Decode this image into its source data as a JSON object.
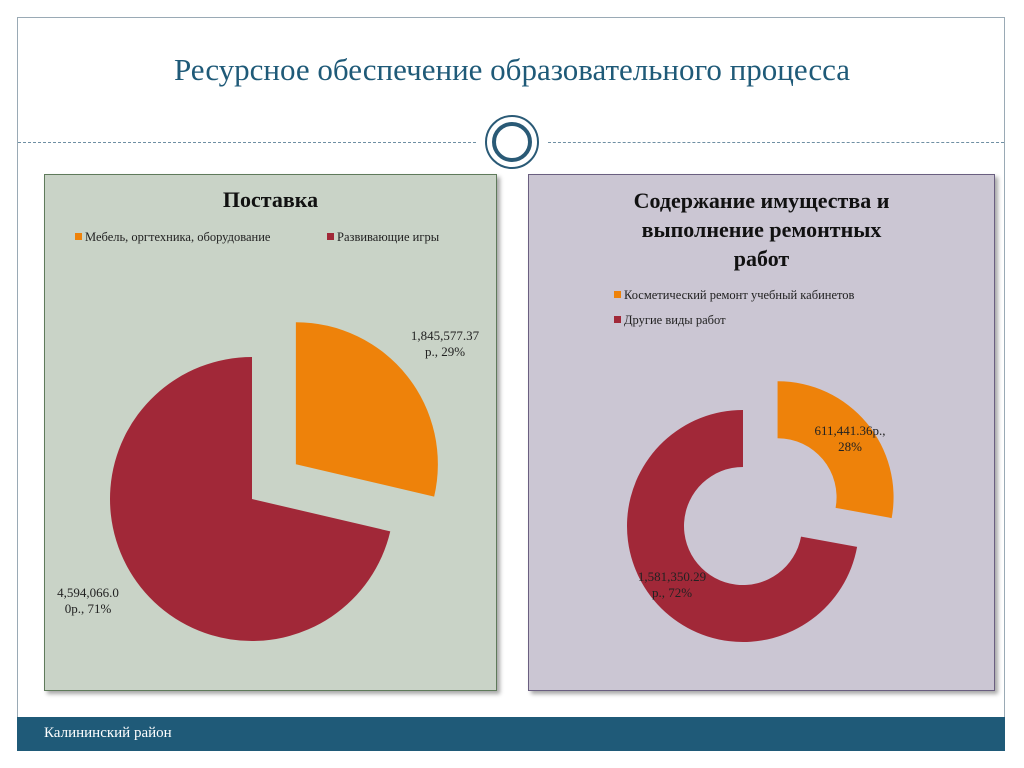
{
  "slide": {
    "title": "Ресурсное обеспечение образовательного процесса",
    "footer": "Калининский район"
  },
  "colors": {
    "orange": "#ee820a",
    "red": "#a12838",
    "title": "#1f5a78"
  },
  "chart_data": [
    {
      "type": "pie",
      "title": "Поставка",
      "legend": "top",
      "series": [
        {
          "name": "Мебель, оргтехника, оборудование",
          "value": 1845577.37,
          "percent": 29,
          "label": "1,845,577.37 р., 29%",
          "label_lines": [
            "1,845,577.37",
            "р., 29%"
          ],
          "color": "#ee820a"
        },
        {
          "name": "Развивающие игры",
          "value": 4594066.0,
          "percent": 71,
          "label": "4,594,066.00р., 71%",
          "label_lines": [
            "4,594,066.0",
            "0р., 71%"
          ],
          "color": "#a12838"
        }
      ]
    },
    {
      "type": "doughnut",
      "title": "Содержание имущества и выполнение ремонтных работ",
      "title_lines": [
        "Содержание имущества и",
        "выполнение ремонтных",
        "работ"
      ],
      "legend": "top",
      "series": [
        {
          "name": "Косметический ремонт учебный кабинетов",
          "value": 611441.36,
          "percent": 28,
          "label": "611,441.36р., 28%",
          "label_lines": [
            "611,441.36р.,",
            "28%"
          ],
          "color": "#ee820a"
        },
        {
          "name": "Другие виды работ",
          "value": 1581350.29,
          "percent": 72,
          "label": "1,581,350.29 р., 72%",
          "label_lines": [
            "1,581,350.29",
            "р., 72%"
          ],
          "color": "#a12838"
        }
      ]
    }
  ]
}
